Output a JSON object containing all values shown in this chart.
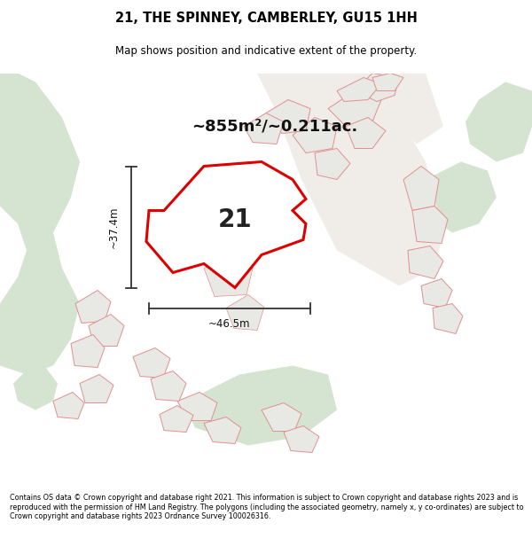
{
  "title": "21, THE SPINNEY, CAMBERLEY, GU15 1HH",
  "subtitle": "Map shows position and indicative extent of the property.",
  "area_text": "~855m²/~0.211ac.",
  "property_number": "21",
  "width_label": "~46.5m",
  "height_label": "~37.4m",
  "footer": "Contains OS data © Crown copyright and database right 2021. This information is subject to Crown copyright and database rights 2023 and is reproduced with the permission of HM Land Registry. The polygons (including the associated geometry, namely x, y co-ordinates) are subject to Crown copyright and database rights 2023 Ordnance Survey 100026316.",
  "bg_color": "#f5f5f2",
  "map_bg": "#f8f8f5",
  "property_fill": "#ffffff",
  "property_edge": "#dd0000",
  "neighbor_fill": "#e8e8e4",
  "neighbor_edge": "#e09090",
  "veg_color": "#d4e4d0",
  "veg_dark": "#c0d4bc"
}
